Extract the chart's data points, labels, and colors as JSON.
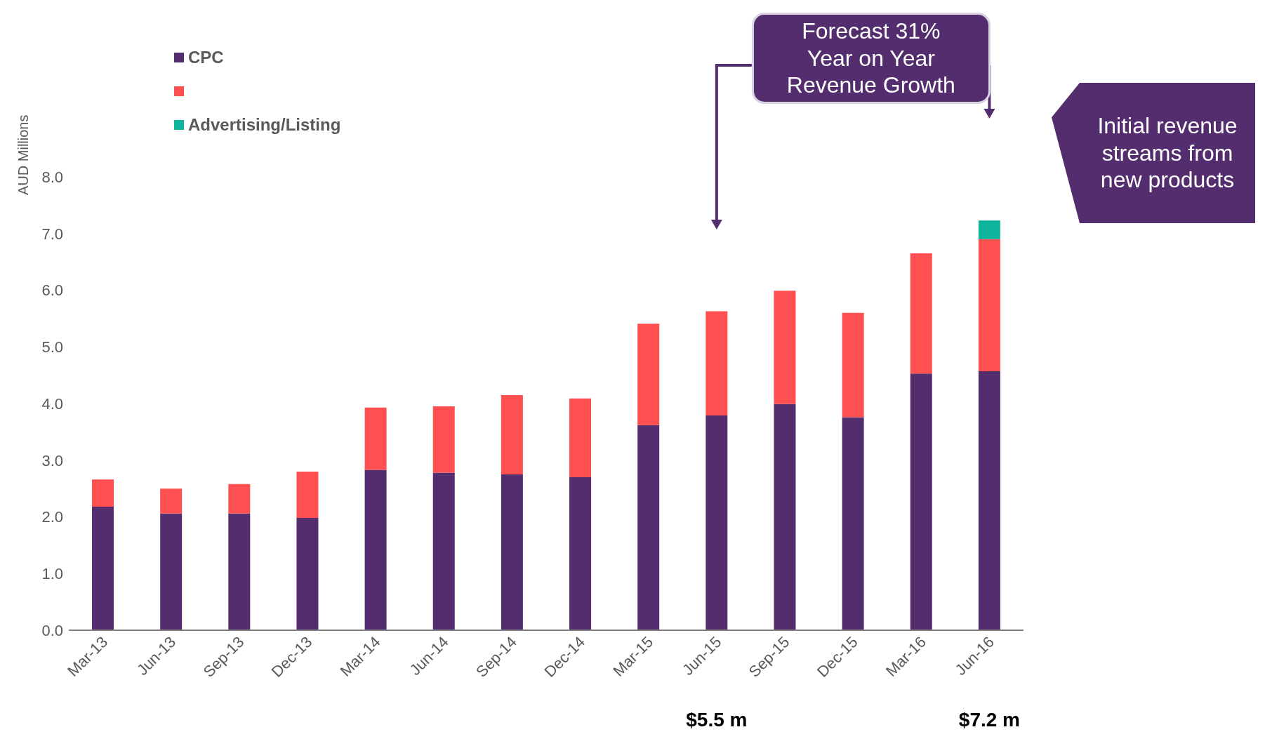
{
  "chart_data": {
    "type": "bar",
    "stacked": true,
    "ylabel": "AUD Millions",
    "categories": [
      "Mar-13",
      "Jun-13",
      "Sep-13",
      "Dec-13",
      "Mar-14",
      "Jun-14",
      "Sep-14",
      "Dec-14",
      "Mar-15",
      "Jun-15",
      "Sep-15",
      "Dec-15",
      "Mar-16",
      "Jun-16"
    ],
    "series": [
      {
        "name": "CPC",
        "color": "#532d6d",
        "values": [
          2.18,
          2.06,
          2.06,
          1.98,
          2.83,
          2.78,
          2.75,
          2.7,
          3.62,
          3.79,
          3.99,
          3.76,
          4.53,
          4.57
        ]
      },
      {
        "color": "#fe5050",
        "values": [
          0.48,
          0.44,
          0.52,
          0.82,
          1.1,
          1.17,
          1.4,
          1.39,
          1.79,
          1.84,
          2.0,
          1.84,
          2.12,
          2.33
        ]
      },
      {
        "name": "Advertising/Listing",
        "color": "#10b39c",
        "values": [
          null,
          null,
          null,
          null,
          null,
          null,
          null,
          null,
          null,
          null,
          null,
          null,
          null,
          0.33
        ]
      }
    ],
    "ylim": [
      0,
      8
    ],
    "yticks": [
      {
        "value": 0,
        "label": "0.0"
      },
      {
        "value": 1,
        "label": "1.0"
      },
      {
        "value": 2,
        "label": "2.0"
      },
      {
        "value": 3,
        "label": "3.0"
      },
      {
        "value": 4,
        "label": "4.0"
      },
      {
        "value": 5,
        "label": "5.0"
      },
      {
        "value": 6,
        "label": "6.0"
      },
      {
        "value": 7,
        "label": "7.0"
      },
      {
        "value": 8,
        "label": "8.0"
      }
    ],
    "grid": false,
    "legend": "top left",
    "annotations": [
      "Forecast 31% Year on Year Revenue Growth",
      "Initial revenue streams from new products",
      "$5.5 m",
      "$7.2 m"
    ]
  }
}
